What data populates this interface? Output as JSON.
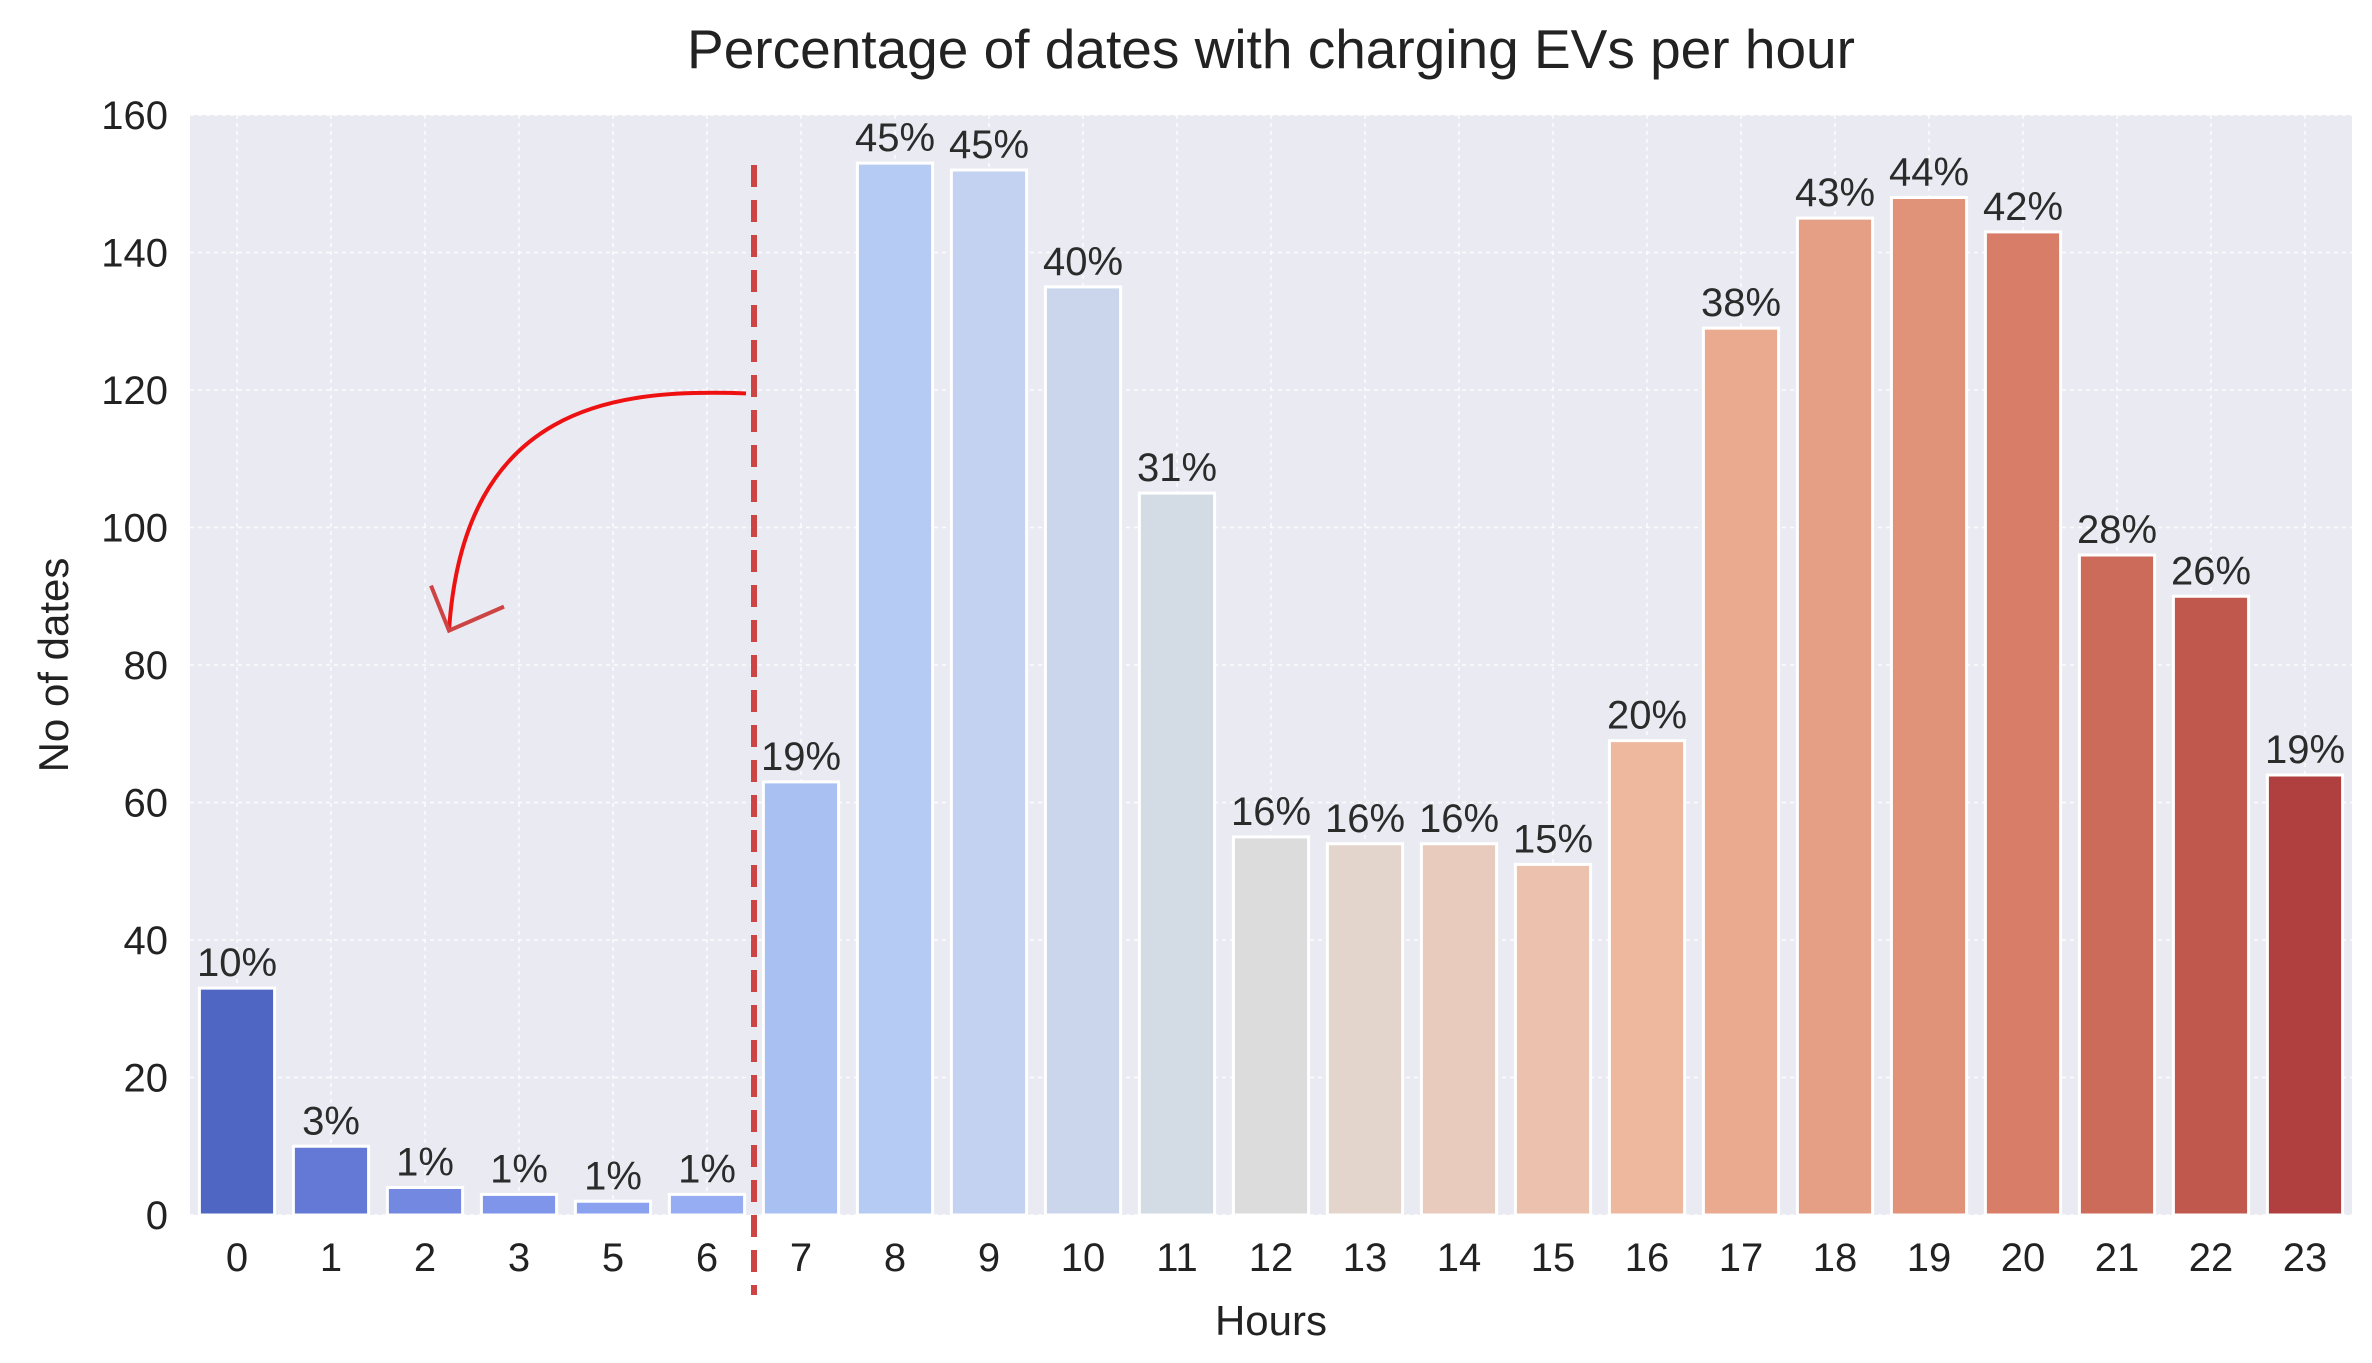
{
  "chart_data": {
    "type": "bar",
    "title": "Percentage of dates with charging EVs per hour",
    "xlabel": "Hours",
    "ylabel": "No of dates",
    "ylim": [
      0,
      160
    ],
    "yticks": [
      "0",
      "20",
      "40",
      "60",
      "80",
      "100",
      "120",
      "140",
      "160"
    ],
    "grid": true,
    "categories": [
      "0",
      "1",
      "2",
      "3",
      "5",
      "6",
      "7",
      "8",
      "9",
      "10",
      "11",
      "12",
      "13",
      "14",
      "15",
      "16",
      "17",
      "18",
      "19",
      "20",
      "21",
      "22",
      "23"
    ],
    "values": [
      33,
      10,
      4,
      3,
      2,
      3,
      63,
      153,
      152,
      135,
      105,
      55,
      54,
      54,
      51,
      69,
      129,
      145,
      148,
      143,
      96,
      90,
      64
    ],
    "labels": [
      "10%",
      "3%",
      "1%",
      "1%",
      "1%",
      "1%",
      "19%",
      "45%",
      "45%",
      "40%",
      "31%",
      "16%",
      "16%",
      "16%",
      "15%",
      "20%",
      "38%",
      "43%",
      "44%",
      "42%",
      "28%",
      "26%",
      "19%"
    ],
    "colors": [
      "#5066c3",
      "#6479d5",
      "#7389e1",
      "#7f95e9",
      "#8aa1ef",
      "#97adf3",
      "#a9c0f3",
      "#b6cbf3",
      "#c2d2f0",
      "#cbd6ec",
      "#d3dbe5",
      "#dcdcdc",
      "#e3d5cc",
      "#e9cbbd",
      "#ecc1ad",
      "#edb89e",
      "#eaaa8f",
      "#e59f84",
      "#e19379",
      "#d87e68",
      "#cd6b5a",
      "#c1584e",
      "#b0403f"
    ],
    "annotations": {
      "divider_between": [
        "6",
        "7"
      ],
      "divider_color": "#cc4444",
      "arrow_color": "#ee1111"
    }
  }
}
